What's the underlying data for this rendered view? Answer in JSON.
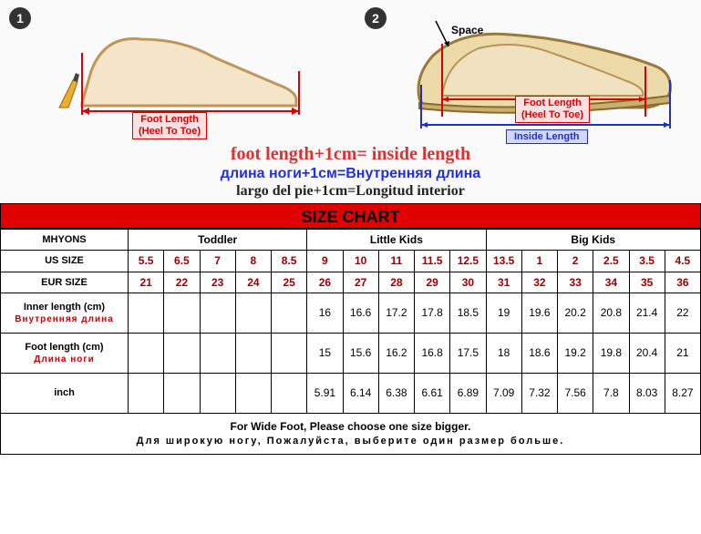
{
  "steps": {
    "one": "1",
    "two": "2"
  },
  "labels": {
    "space": "Space",
    "foot_length": "Foot Length",
    "heel_to_toe": "(Heel To Toe)",
    "inside_length": "Inside Length"
  },
  "formulas": {
    "en": "foot length+1cm= inside length",
    "ru": "длина ноги+1см=Bнутренняя длина",
    "es": "largo del pie+1cm=Longitud interior"
  },
  "chart": {
    "title": "SIZE CHART",
    "brand": "MHYONS",
    "groups": [
      "Toddler",
      "Little Kids",
      "Big Kids"
    ],
    "row_labels": {
      "us": "US SIZE",
      "eur": "EUR SIZE",
      "inner": "Inner length (cm)",
      "inner_ru": "Внутренняя длина",
      "foot": "Foot length (cm)",
      "foot_ru": "Длина ноги",
      "inch": "inch"
    },
    "columns": [
      {
        "us": "5.5",
        "eur": "21",
        "inner": "",
        "foot": "",
        "inch": ""
      },
      {
        "us": "6.5",
        "eur": "22",
        "inner": "",
        "foot": "",
        "inch": ""
      },
      {
        "us": "7",
        "eur": "23",
        "inner": "",
        "foot": "",
        "inch": ""
      },
      {
        "us": "8",
        "eur": "24",
        "inner": "",
        "foot": "",
        "inch": ""
      },
      {
        "us": "8.5",
        "eur": "25",
        "inner": "",
        "foot": "",
        "inch": ""
      },
      {
        "us": "9",
        "eur": "26",
        "inner": "16",
        "foot": "15",
        "inch": "5.91"
      },
      {
        "us": "10",
        "eur": "27",
        "inner": "16.6",
        "foot": "15.6",
        "inch": "6.14"
      },
      {
        "us": "11",
        "eur": "28",
        "inner": "17.2",
        "foot": "16.2",
        "inch": "6.38"
      },
      {
        "us": "11.5",
        "eur": "29",
        "inner": "17.8",
        "foot": "16.8",
        "inch": "6.61"
      },
      {
        "us": "12.5",
        "eur": "30",
        "inner": "18.5",
        "foot": "17.5",
        "inch": "6.89"
      },
      {
        "us": "13.5",
        "eur": "31",
        "inner": "19",
        "foot": "18",
        "inch": "7.09"
      },
      {
        "us": "1",
        "eur": "32",
        "inner": "19.6",
        "foot": "18.6",
        "inch": "7.32"
      },
      {
        "us": "2",
        "eur": "33",
        "inner": "20.2",
        "foot": "19.2",
        "inch": "7.56"
      },
      {
        "us": "2.5",
        "eur": "34",
        "inner": "20.8",
        "foot": "19.8",
        "inch": "7.8"
      },
      {
        "us": "3.5",
        "eur": "35",
        "inner": "21.4",
        "foot": "20.4",
        "inch": "8.03"
      },
      {
        "us": "4.5",
        "eur": "36",
        "inner": "22",
        "foot": "21",
        "inch": "8.27"
      }
    ],
    "footer_en": "For Wide Foot, Please choose one size bigger.",
    "footer_ru": "Для широкую ногу, Пожалуйста, выберите один размер больше."
  },
  "style": {
    "colors": {
      "red_header": "#e00000",
      "data_red": "#a00000",
      "formula_red": "#e03030",
      "formula_blue": "#2030e0",
      "border": "#000000"
    },
    "group_spans": [
      5,
      5,
      6
    ]
  }
}
